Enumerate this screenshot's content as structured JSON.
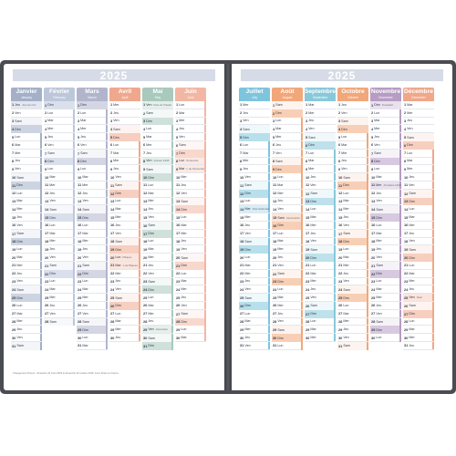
{
  "spread": {
    "left_year": "2025",
    "right_year": "2025"
  },
  "months": [
    {
      "key": "jan",
      "name": "Janvier",
      "sub": "January",
      "color": "#a4b0c8",
      "days": 31,
      "start_dow": 3,
      "events": {
        "1": "Jour de l'An"
      }
    },
    {
      "key": "feb",
      "name": "Février",
      "sub": "February",
      "color": "#bcc7da",
      "days": 28,
      "start_dow": 6,
      "events": {}
    },
    {
      "key": "mar",
      "name": "Mars",
      "sub": "March",
      "color": "#b1b5cc",
      "days": 31,
      "start_dow": 6,
      "events": {}
    },
    {
      "key": "apr",
      "name": "Avril",
      "sub": "April",
      "color": "#efa88e",
      "days": 30,
      "start_dow": 2,
      "events": {
        "20": "Pâques",
        "21": "L.de Pâques"
      }
    },
    {
      "key": "may",
      "name": "Mai",
      "sub": "May",
      "color": "#a8c9bc",
      "days": 31,
      "start_dow": 4,
      "events": {
        "1": "Fête du Travail",
        "8": "Victoire 1945",
        "29": "Ascension"
      }
    },
    {
      "key": "jun",
      "name": "Juin",
      "sub": "June",
      "color": "#f2b7a4",
      "days": 30,
      "start_dow": 0,
      "events": {
        "8": "Pentecôte",
        "9": "L.de Pentecôte"
      }
    },
    {
      "key": "jul",
      "name": "Juillet",
      "sub": "July",
      "color": "#7ec4dd",
      "days": 31,
      "start_dow": 2,
      "events": {
        "14": "Fête Nationale"
      }
    },
    {
      "key": "aug",
      "name": "Août",
      "sub": "August",
      "color": "#f2a77a",
      "days": 31,
      "start_dow": 5,
      "events": {
        "15": "Assomption"
      }
    },
    {
      "key": "sep",
      "name": "Septembre",
      "sub": "September",
      "color": "#89c8da",
      "days": 30,
      "start_dow": 1,
      "events": {}
    },
    {
      "key": "oct",
      "name": "Octobre",
      "sub": "October",
      "color": "#f1a77a",
      "days": 31,
      "start_dow": 3,
      "events": {}
    },
    {
      "key": "nov",
      "name": "Novembre",
      "sub": "November",
      "color": "#b79cc4",
      "days": 30,
      "start_dow": 6,
      "events": {
        "1": "Toussaint",
        "11": "Armistice 1918"
      }
    },
    {
      "key": "dec",
      "name": "Décembre",
      "sub": "December",
      "color": "#f0a78a",
      "days": 31,
      "start_dow": 1,
      "events": {
        "25": "Noël"
      }
    }
  ],
  "weekday_abbr": [
    "Lun",
    "Mar",
    "Mer",
    "Jeu",
    "Ven",
    "Sam",
    "Dim"
  ],
  "footnote": "Changement d'heure : dimanche 30 mars 2025 et dimanche 26 octobre 2025. Jours fériés en France."
}
